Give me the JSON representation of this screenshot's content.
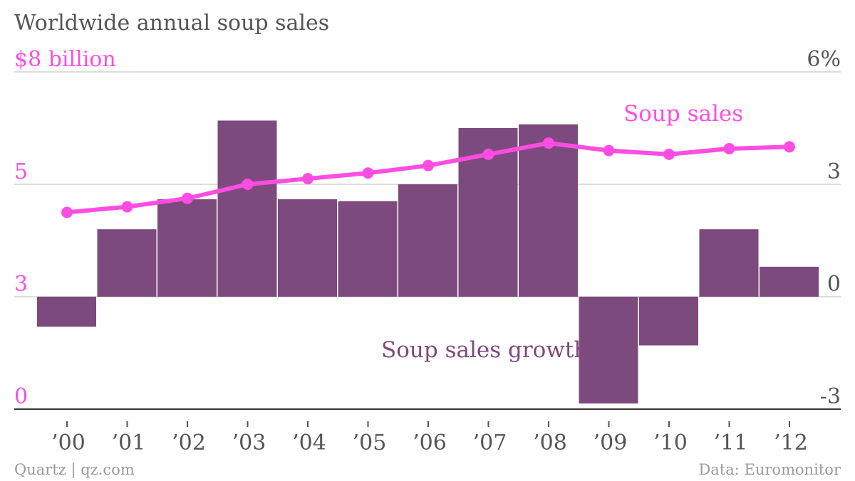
{
  "title": "Worldwide annual soup sales",
  "footer": {
    "source_left": "Quartz | qz.com",
    "source_right": "Data: Euromonitor"
  },
  "chart_data": {
    "type": "bar+line",
    "categories": [
      "’00",
      "’01",
      "’02",
      "’03",
      "’04",
      "’05",
      "’06",
      "’07",
      "’08",
      "’09",
      "’10",
      "’11",
      "’12"
    ],
    "left_axis": {
      "ticks": [
        {
          "value": 8,
          "label": "$8 billion"
        },
        {
          "value": 5,
          "label": "5"
        },
        {
          "value": 3,
          "label": "3"
        },
        {
          "value": 0,
          "label": "0"
        }
      ]
    },
    "right_axis": {
      "ticks": [
        {
          "value": 6,
          "label": "6%"
        },
        {
          "value": 3,
          "label": "3"
        },
        {
          "value": 0,
          "label": "0"
        },
        {
          "value": -3,
          "label": "-3"
        }
      ]
    },
    "series": [
      {
        "name": "Soup sales growth",
        "type": "bar",
        "axis": "right",
        "color": "#7d4a7d",
        "values": [
          -0.8,
          1.8,
          2.6,
          4.7,
          2.6,
          2.55,
          3.0,
          4.5,
          4.6,
          -2.85,
          -1.3,
          1.8,
          0.8
        ]
      },
      {
        "name": "Soup sales",
        "type": "line",
        "axis": "left",
        "color": "#ff4de1",
        "values": [
          4.5,
          4.6,
          4.75,
          5.0,
          5.15,
          5.3,
          5.5,
          5.8,
          6.1,
          5.9,
          5.8,
          5.95,
          6.0
        ]
      }
    ],
    "annotations": [
      {
        "text": "Soup sales",
        "series": "Soup sales"
      },
      {
        "text": "Soup sales growth",
        "series": "Soup sales growth"
      }
    ],
    "grid": true
  }
}
